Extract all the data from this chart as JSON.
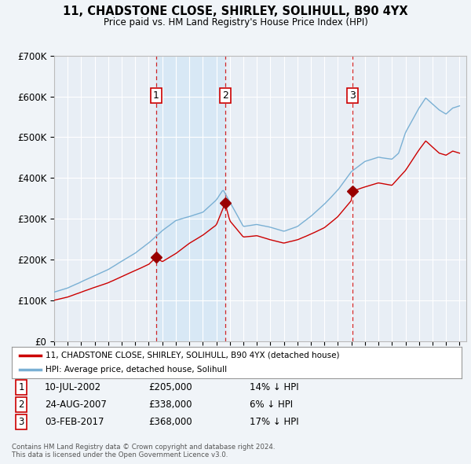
{
  "title": "11, CHADSTONE CLOSE, SHIRLEY, SOLIHULL, B90 4YX",
  "subtitle": "Price paid vs. HM Land Registry's House Price Index (HPI)",
  "background_color": "#f0f4f8",
  "plot_bg_color": "#e8eef5",
  "shaded_bg_color": "#d8e8f5",
  "grid_color": "#ffffff",
  "ylim": [
    0,
    700000
  ],
  "yticks": [
    0,
    100000,
    200000,
    300000,
    400000,
    500000,
    600000,
    700000
  ],
  "sale_line_color": "#cc0000",
  "hpi_line_color": "#7ab0d4",
  "sale_marker_color": "#990000",
  "vline_color": "#cc0000",
  "transaction_color": "#cc0000",
  "transactions": [
    {
      "num": 1,
      "date_str": "10-JUL-2002",
      "year": 2002.54,
      "price": 205000,
      "pct": "14%",
      "dir": "↓"
    },
    {
      "num": 2,
      "date_str": "24-AUG-2007",
      "year": 2007.65,
      "price": 338000,
      "pct": "6%",
      "dir": "↓"
    },
    {
      "num": 3,
      "date_str": "03-FEB-2017",
      "year": 2017.09,
      "price": 368000,
      "pct": "17%",
      "dir": "↓"
    }
  ],
  "legend_sale_label": "11, CHADSTONE CLOSE, SHIRLEY, SOLIHULL, B90 4YX (detached house)",
  "legend_hpi_label": "HPI: Average price, detached house, Solihull",
  "footnote": "Contains HM Land Registry data © Crown copyright and database right 2024.\nThis data is licensed under the Open Government Licence v3.0.",
  "xmin": 1995,
  "xmax": 2025.5
}
